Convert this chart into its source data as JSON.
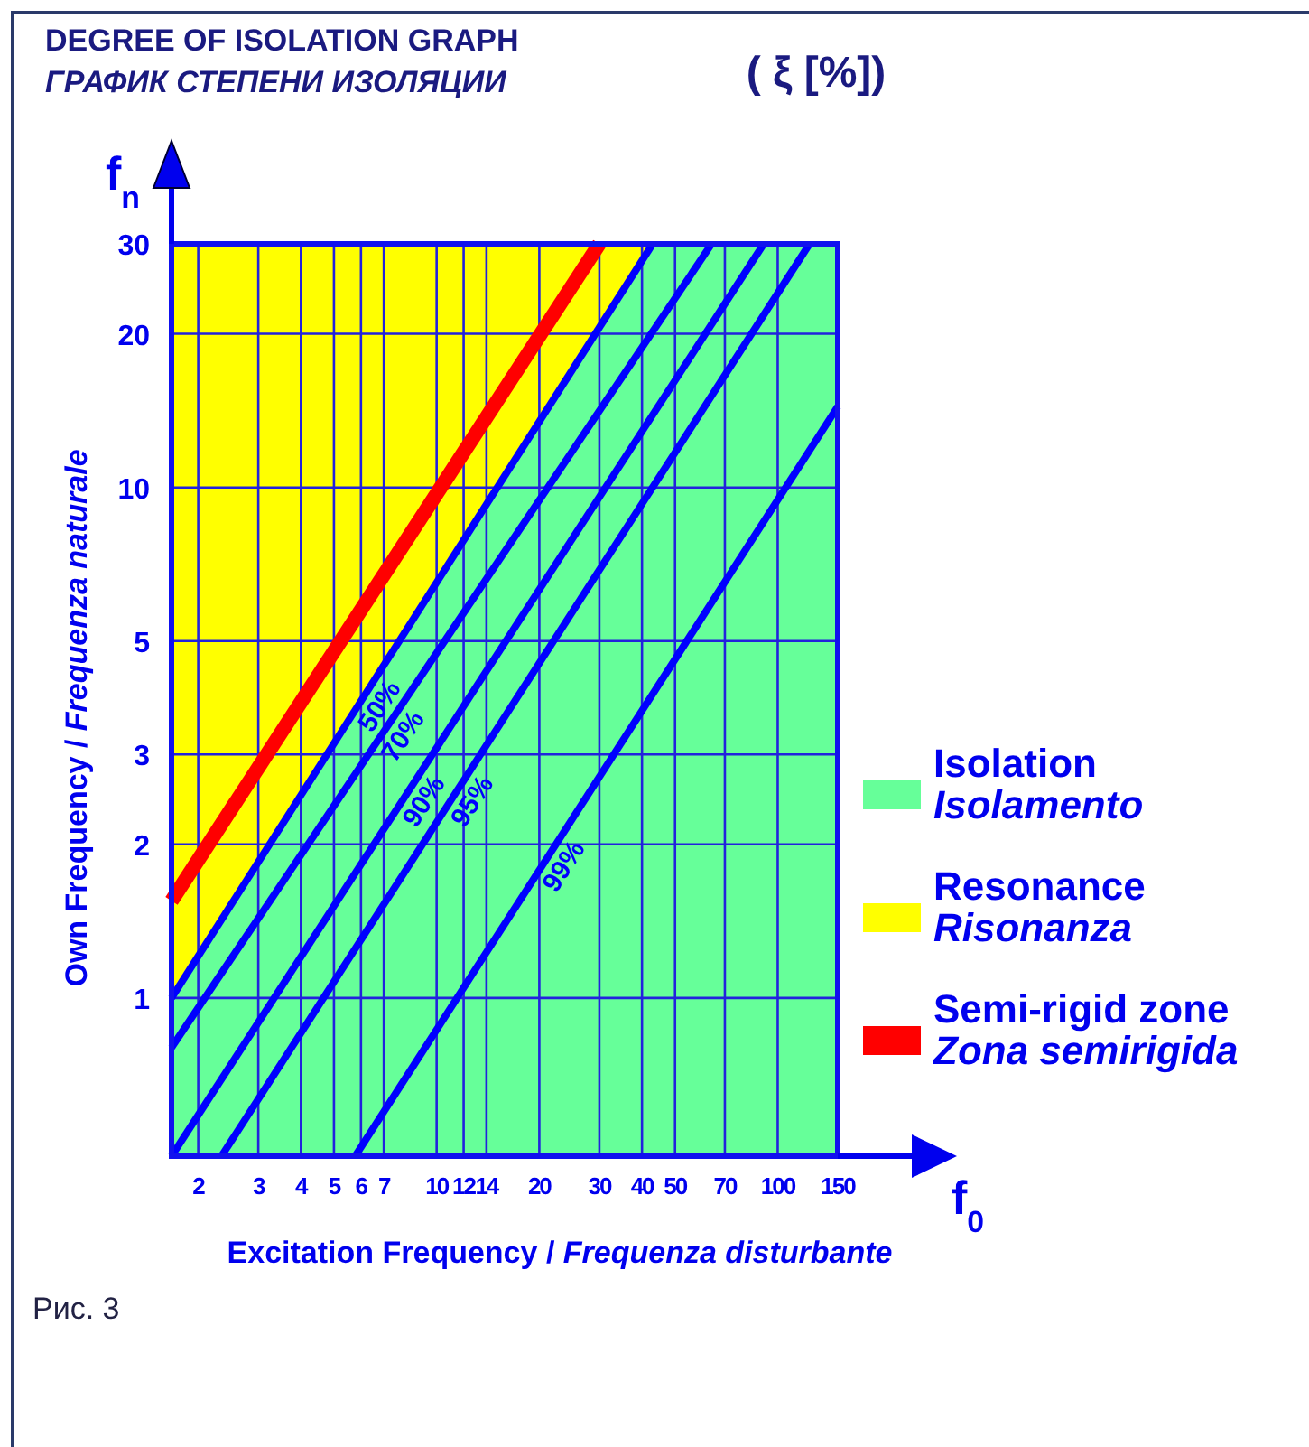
{
  "chart_data": {
    "type": "line",
    "title": "DEGREE OF ISOLATION GRAPH",
    "subtitle": "ГРАФИК СТЕПЕНИ ИЗОЛЯЦИИ",
    "xlabel": "Excitation Frequency / Frequenza disturbante",
    "ylabel": "Own Frequency / Frequenza naturale",
    "log": "xy",
    "grid": true,
    "legend": "right",
    "xlim": [
      1.67,
      150
    ],
    "ylim": [
      0.49,
      30
    ],
    "xticks": [
      2,
      3,
      4,
      5,
      6,
      7,
      10,
      12,
      14,
      20,
      30,
      40,
      50,
      70,
      100,
      150
    ],
    "yticks": [
      1,
      2,
      3,
      5,
      10,
      20,
      30
    ],
    "series": [
      {
        "type": "area",
        "name": "Isolation\nIsolamento",
        "color": "#66ff99",
        "x": [
          1.67,
          43,
          150
        ],
        "values": [
          1,
          30,
          30
        ]
      },
      {
        "type": "area",
        "name": "Resonance\nRisonanza",
        "color": "#ffff00",
        "x": [
          1.67,
          43
        ],
        "values": [
          30,
          30
        ]
      },
      {
        "name": "50%",
        "color": "#0000ff",
        "x": [
          1.67,
          43
        ],
        "values": [
          1,
          30
        ]
      },
      {
        "name": "70%",
        "color": "#0000ff",
        "x": [
          1.67,
          64
        ],
        "values": [
          0.8,
          30
        ]
      },
      {
        "name": "90%",
        "color": "#0000ff",
        "x": [
          1.67,
          91
        ],
        "values": [
          0.49,
          30
        ]
      },
      {
        "name": "95%",
        "color": "#0000ff",
        "x": [
          2.34,
          124
        ],
        "values": [
          0.49,
          30
        ]
      },
      {
        "name": "99%",
        "color": "#0000ff",
        "x": [
          5.77,
          150
        ],
        "values": [
          0.49,
          14.4
        ]
      },
      {
        "name": "Semi-rigid zone\nZona semirigida",
        "color": "#ff0000",
        "x": [
          1.67,
          30
        ],
        "values": [
          1.55,
          30
        ]
      }
    ],
    "annotations": [
      "( ξ [%])",
      "f$_{n}$",
      "f$_{0}$",
      "Рис. 3"
    ]
  }
}
